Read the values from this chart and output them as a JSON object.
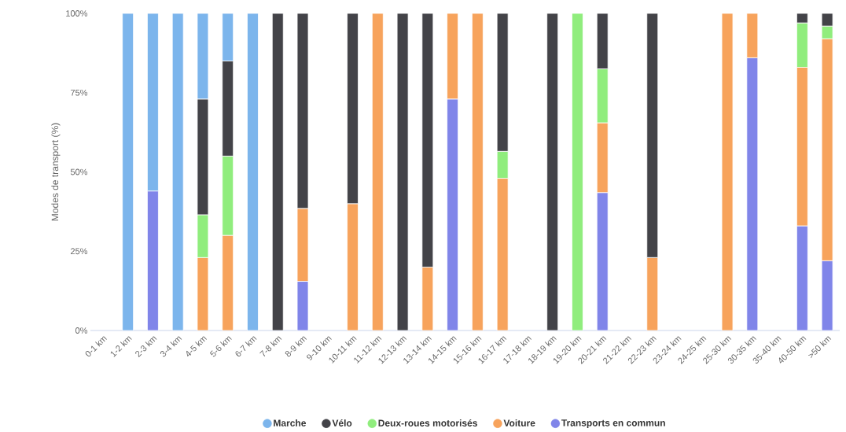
{
  "chart_data": {
    "type": "bar",
    "stacked": true,
    "ylabel": "Modes de transport (%)",
    "categories": [
      "0-1 km",
      "1-2 km",
      "2-3 km",
      "3-4 km",
      "4-5 km",
      "5-6 km",
      "6-7 km",
      "7-8 km",
      "8-9 km",
      "9-10 km",
      "10-11 km",
      "11-12 km",
      "12-13 km",
      "13-14 km",
      "14-15 km",
      "15-16 km",
      "16-17 km",
      "17-18 km",
      "18-19 km",
      "19-20 km",
      "20-21 km",
      "21-22 km",
      "22-23 km",
      "23-24 km",
      "24-25 km",
      "25-30 km",
      "30-35 km",
      "35-40 km",
      "40-50 km",
      ">50 km"
    ],
    "series": [
      {
        "name": "Transports en commun",
        "color": "#8085e9",
        "values": [
          null,
          null,
          44,
          null,
          null,
          null,
          null,
          null,
          15.5,
          null,
          null,
          null,
          null,
          null,
          73,
          null,
          null,
          null,
          null,
          null,
          43.5,
          null,
          null,
          null,
          null,
          null,
          86,
          null,
          33,
          22
        ]
      },
      {
        "name": "Voiture",
        "color": "#f7a35c",
        "values": [
          null,
          null,
          null,
          null,
          23,
          30,
          null,
          null,
          23,
          null,
          40,
          100,
          null,
          20,
          27,
          100,
          48,
          null,
          null,
          null,
          22,
          null,
          23,
          null,
          null,
          100,
          14,
          null,
          50,
          70
        ]
      },
      {
        "name": "Deux-roues motorisés",
        "color": "#90ed7d",
        "values": [
          null,
          null,
          null,
          null,
          13.5,
          25,
          null,
          null,
          null,
          null,
          null,
          null,
          null,
          null,
          null,
          null,
          8.5,
          null,
          null,
          100,
          17,
          null,
          null,
          null,
          null,
          null,
          null,
          null,
          14,
          4
        ]
      },
      {
        "name": "Vélo",
        "color": "#434348",
        "values": [
          null,
          null,
          null,
          null,
          36.5,
          30,
          null,
          100,
          61.5,
          null,
          60,
          null,
          100,
          80,
          null,
          null,
          43.5,
          null,
          100,
          null,
          17.5,
          null,
          77,
          null,
          null,
          null,
          null,
          null,
          3,
          4
        ]
      },
      {
        "name": "Marche",
        "color": "#7cb5ec",
        "values": [
          null,
          100,
          56,
          100,
          27,
          15,
          100,
          null,
          null,
          null,
          null,
          null,
          null,
          null,
          null,
          null,
          null,
          null,
          null,
          null,
          null,
          null,
          null,
          null,
          null,
          null,
          null,
          null,
          null,
          null
        ]
      }
    ],
    "ylim": [
      0,
      100
    ],
    "yticks": [
      {
        "value": 0,
        "label": "0%"
      },
      {
        "value": 25,
        "label": "25%"
      },
      {
        "value": 50,
        "label": "50%"
      },
      {
        "value": 75,
        "label": "75%"
      },
      {
        "value": 100,
        "label": "100%"
      }
    ],
    "legend": "bottom"
  }
}
